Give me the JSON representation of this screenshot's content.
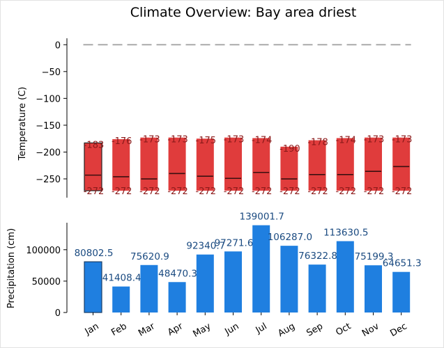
{
  "title": "Climate Overview: Bay area driest",
  "colors": {
    "temp_bar": "#e03c3c",
    "temp_edge_selected": "#222222",
    "temp_label": "#8b1a1a",
    "mean_line": "#3a1010",
    "precip_bar": "#1f7fe0",
    "precip_edge_selected": "#1a3e66",
    "precip_label": "#1a4a80",
    "zero_line": "#aaaaaa",
    "axis": "#000000"
  },
  "chart_data": [
    {
      "type": "bar",
      "subtype": "floating-range",
      "ylabel": "Temperature (C)",
      "ylim": [
        -285,
        12
      ],
      "yticks": [
        0,
        -50,
        -100,
        -150,
        -200,
        -250
      ],
      "ytick_labels": [
        "0",
        "−50",
        "−100",
        "−150",
        "−200",
        "−250"
      ],
      "reference_line": {
        "y": 0,
        "style": "dashed"
      },
      "categories": [
        "Jan",
        "Feb",
        "Mar",
        "Apr",
        "May",
        "Jun",
        "Jul",
        "Aug",
        "Sep",
        "Oct",
        "Nov",
        "Dec"
      ],
      "max": [
        -183,
        -176,
        -173,
        -173,
        -175,
        -173,
        -174,
        -190,
        -178,
        -174,
        -173,
        -173
      ],
      "min": [
        -272,
        -272,
        -272,
        -272,
        -272,
        -272,
        -272,
        -272,
        -272,
        -272,
        -272,
        -272
      ],
      "mean": [
        -243,
        -246,
        -250,
        -240,
        -245,
        -249,
        -238,
        -250,
        -242,
        -242,
        -236,
        -227
      ],
      "max_labels": [
        "-183",
        "-176",
        "-173",
        "-173",
        "-175",
        "-173",
        "-174",
        "-190",
        "-178",
        "-174",
        "-173",
        "-173"
      ],
      "min_labels": [
        "-272",
        "-272",
        "-272",
        "-272",
        "-272",
        "-272",
        "-272",
        "-272",
        "-272",
        "-272",
        "-272",
        "-272"
      ],
      "highlighted_index": 0
    },
    {
      "type": "bar",
      "ylabel": "Precipitation (cm)",
      "ylim": [
        0,
        143000
      ],
      "yticks": [
        0,
        50000,
        100000
      ],
      "ytick_labels": [
        "0",
        "50000",
        "100000"
      ],
      "categories": [
        "Jan",
        "Feb",
        "Mar",
        "Apr",
        "May",
        "Jun",
        "Jul",
        "Aug",
        "Sep",
        "Oct",
        "Nov",
        "Dec"
      ],
      "values": [
        80802.5,
        41408.4,
        75620.9,
        48470.3,
        92340.7,
        97271.6,
        139001.7,
        106287.0,
        76322.8,
        113630.5,
        75199.3,
        64651.3
      ],
      "value_labels": [
        "80802.5",
        "41408.4",
        "75620.9",
        "48470.3",
        "92340.7",
        "97271.6",
        "139001.7",
        "106287.0",
        "76322.8",
        "113630.5",
        "75199.3",
        "64651.3"
      ],
      "highlighted_index": 0
    }
  ]
}
